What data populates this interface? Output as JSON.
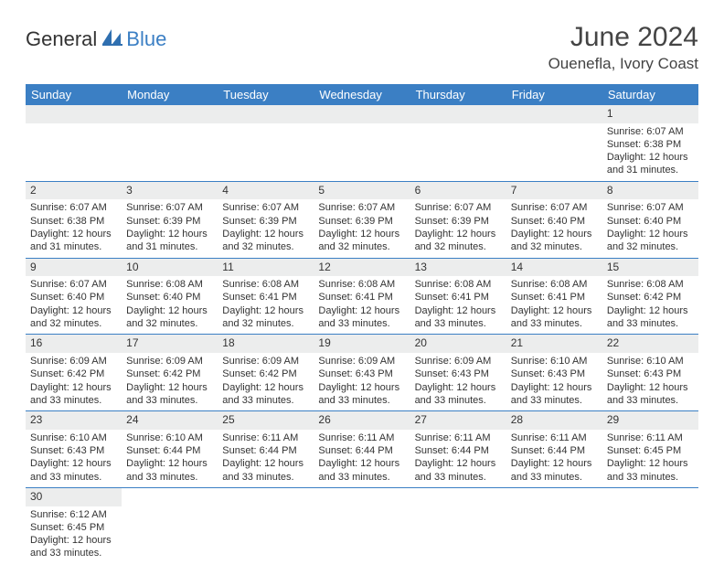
{
  "brand": {
    "general": "General",
    "blue": "Blue"
  },
  "title": "June 2024",
  "location": "Ouenefla, Ivory Coast",
  "colors": {
    "header_bg": "#3b7fc4",
    "header_text": "#ffffff",
    "daynum_bg": "#eceded",
    "border": "#3b7fc4",
    "text": "#333333",
    "page_bg": "#ffffff"
  },
  "weekdays": [
    "Sunday",
    "Monday",
    "Tuesday",
    "Wednesday",
    "Thursday",
    "Friday",
    "Saturday"
  ],
  "weeks": [
    [
      null,
      null,
      null,
      null,
      null,
      null,
      {
        "n": "1",
        "sr": "Sunrise: 6:07 AM",
        "ss": "Sunset: 6:38 PM",
        "d1": "Daylight: 12 hours",
        "d2": "and 31 minutes."
      }
    ],
    [
      {
        "n": "2",
        "sr": "Sunrise: 6:07 AM",
        "ss": "Sunset: 6:38 PM",
        "d1": "Daylight: 12 hours",
        "d2": "and 31 minutes."
      },
      {
        "n": "3",
        "sr": "Sunrise: 6:07 AM",
        "ss": "Sunset: 6:39 PM",
        "d1": "Daylight: 12 hours",
        "d2": "and 31 minutes."
      },
      {
        "n": "4",
        "sr": "Sunrise: 6:07 AM",
        "ss": "Sunset: 6:39 PM",
        "d1": "Daylight: 12 hours",
        "d2": "and 32 minutes."
      },
      {
        "n": "5",
        "sr": "Sunrise: 6:07 AM",
        "ss": "Sunset: 6:39 PM",
        "d1": "Daylight: 12 hours",
        "d2": "and 32 minutes."
      },
      {
        "n": "6",
        "sr": "Sunrise: 6:07 AM",
        "ss": "Sunset: 6:39 PM",
        "d1": "Daylight: 12 hours",
        "d2": "and 32 minutes."
      },
      {
        "n": "7",
        "sr": "Sunrise: 6:07 AM",
        "ss": "Sunset: 6:40 PM",
        "d1": "Daylight: 12 hours",
        "d2": "and 32 minutes."
      },
      {
        "n": "8",
        "sr": "Sunrise: 6:07 AM",
        "ss": "Sunset: 6:40 PM",
        "d1": "Daylight: 12 hours",
        "d2": "and 32 minutes."
      }
    ],
    [
      {
        "n": "9",
        "sr": "Sunrise: 6:07 AM",
        "ss": "Sunset: 6:40 PM",
        "d1": "Daylight: 12 hours",
        "d2": "and 32 minutes."
      },
      {
        "n": "10",
        "sr": "Sunrise: 6:08 AM",
        "ss": "Sunset: 6:40 PM",
        "d1": "Daylight: 12 hours",
        "d2": "and 32 minutes."
      },
      {
        "n": "11",
        "sr": "Sunrise: 6:08 AM",
        "ss": "Sunset: 6:41 PM",
        "d1": "Daylight: 12 hours",
        "d2": "and 32 minutes."
      },
      {
        "n": "12",
        "sr": "Sunrise: 6:08 AM",
        "ss": "Sunset: 6:41 PM",
        "d1": "Daylight: 12 hours",
        "d2": "and 33 minutes."
      },
      {
        "n": "13",
        "sr": "Sunrise: 6:08 AM",
        "ss": "Sunset: 6:41 PM",
        "d1": "Daylight: 12 hours",
        "d2": "and 33 minutes."
      },
      {
        "n": "14",
        "sr": "Sunrise: 6:08 AM",
        "ss": "Sunset: 6:41 PM",
        "d1": "Daylight: 12 hours",
        "d2": "and 33 minutes."
      },
      {
        "n": "15",
        "sr": "Sunrise: 6:08 AM",
        "ss": "Sunset: 6:42 PM",
        "d1": "Daylight: 12 hours",
        "d2": "and 33 minutes."
      }
    ],
    [
      {
        "n": "16",
        "sr": "Sunrise: 6:09 AM",
        "ss": "Sunset: 6:42 PM",
        "d1": "Daylight: 12 hours",
        "d2": "and 33 minutes."
      },
      {
        "n": "17",
        "sr": "Sunrise: 6:09 AM",
        "ss": "Sunset: 6:42 PM",
        "d1": "Daylight: 12 hours",
        "d2": "and 33 minutes."
      },
      {
        "n": "18",
        "sr": "Sunrise: 6:09 AM",
        "ss": "Sunset: 6:42 PM",
        "d1": "Daylight: 12 hours",
        "d2": "and 33 minutes."
      },
      {
        "n": "19",
        "sr": "Sunrise: 6:09 AM",
        "ss": "Sunset: 6:43 PM",
        "d1": "Daylight: 12 hours",
        "d2": "and 33 minutes."
      },
      {
        "n": "20",
        "sr": "Sunrise: 6:09 AM",
        "ss": "Sunset: 6:43 PM",
        "d1": "Daylight: 12 hours",
        "d2": "and 33 minutes."
      },
      {
        "n": "21",
        "sr": "Sunrise: 6:10 AM",
        "ss": "Sunset: 6:43 PM",
        "d1": "Daylight: 12 hours",
        "d2": "and 33 minutes."
      },
      {
        "n": "22",
        "sr": "Sunrise: 6:10 AM",
        "ss": "Sunset: 6:43 PM",
        "d1": "Daylight: 12 hours",
        "d2": "and 33 minutes."
      }
    ],
    [
      {
        "n": "23",
        "sr": "Sunrise: 6:10 AM",
        "ss": "Sunset: 6:43 PM",
        "d1": "Daylight: 12 hours",
        "d2": "and 33 minutes."
      },
      {
        "n": "24",
        "sr": "Sunrise: 6:10 AM",
        "ss": "Sunset: 6:44 PM",
        "d1": "Daylight: 12 hours",
        "d2": "and 33 minutes."
      },
      {
        "n": "25",
        "sr": "Sunrise: 6:11 AM",
        "ss": "Sunset: 6:44 PM",
        "d1": "Daylight: 12 hours",
        "d2": "and 33 minutes."
      },
      {
        "n": "26",
        "sr": "Sunrise: 6:11 AM",
        "ss": "Sunset: 6:44 PM",
        "d1": "Daylight: 12 hours",
        "d2": "and 33 minutes."
      },
      {
        "n": "27",
        "sr": "Sunrise: 6:11 AM",
        "ss": "Sunset: 6:44 PM",
        "d1": "Daylight: 12 hours",
        "d2": "and 33 minutes."
      },
      {
        "n": "28",
        "sr": "Sunrise: 6:11 AM",
        "ss": "Sunset: 6:44 PM",
        "d1": "Daylight: 12 hours",
        "d2": "and 33 minutes."
      },
      {
        "n": "29",
        "sr": "Sunrise: 6:11 AM",
        "ss": "Sunset: 6:45 PM",
        "d1": "Daylight: 12 hours",
        "d2": "and 33 minutes."
      }
    ],
    [
      {
        "n": "30",
        "sr": "Sunrise: 6:12 AM",
        "ss": "Sunset: 6:45 PM",
        "d1": "Daylight: 12 hours",
        "d2": "and 33 minutes."
      },
      null,
      null,
      null,
      null,
      null,
      null
    ]
  ]
}
